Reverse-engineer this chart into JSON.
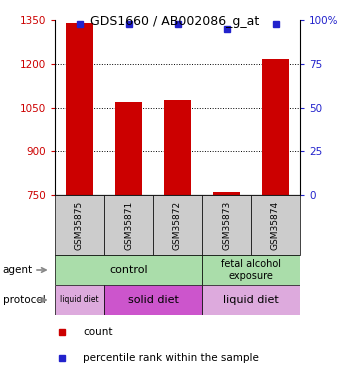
{
  "title": "GDS1660 / AB002086_g_at",
  "samples": [
    "GSM35875",
    "GSM35871",
    "GSM35872",
    "GSM35873",
    "GSM35874"
  ],
  "counts": [
    1340,
    1070,
    1075,
    762,
    1215
  ],
  "percentiles": [
    98,
    98,
    98,
    95,
    98
  ],
  "ylim_left": [
    750,
    1350
  ],
  "ylim_right": [
    0,
    100
  ],
  "yticks_left": [
    750,
    900,
    1050,
    1200,
    1350
  ],
  "yticks_right": [
    0,
    25,
    50,
    75,
    100
  ],
  "ytick_labels_right": [
    "0",
    "25",
    "50",
    "75",
    "100%"
  ],
  "bar_color": "#cc0000",
  "dot_color": "#2222cc",
  "bar_width": 0.55,
  "bar_bottom": 750,
  "grid_ticks": [
    900,
    1050,
    1200
  ],
  "tick_color_left": "#cc0000",
  "tick_color_right": "#2222cc",
  "background_color": "#ffffff",
  "label_area_color": "#cccccc",
  "agent_color": "#aaddaa",
  "protocol_liquid_color": "#ddaadd",
  "protocol_solid_color": "#cc55cc",
  "arrow_color": "#888888"
}
